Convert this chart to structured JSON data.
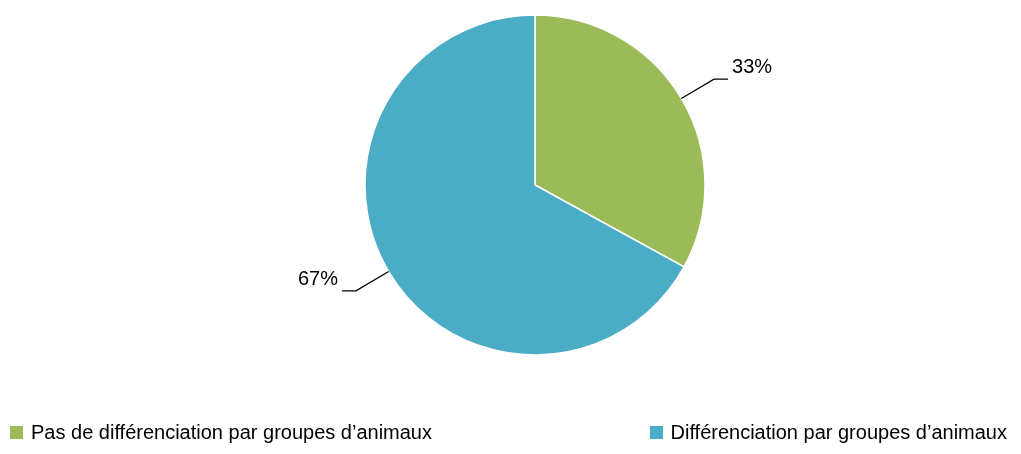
{
  "chart_data": {
    "type": "pie",
    "categories": [
      "Pas de différenciation par groupes d’animaux",
      "Différenciation par groupes d’animaux"
    ],
    "values": [
      33,
      67
    ],
    "colors": [
      "#9bbb59",
      "#4bacc6"
    ],
    "value_labels": [
      "33%",
      "67%"
    ],
    "legend": "bottom"
  }
}
